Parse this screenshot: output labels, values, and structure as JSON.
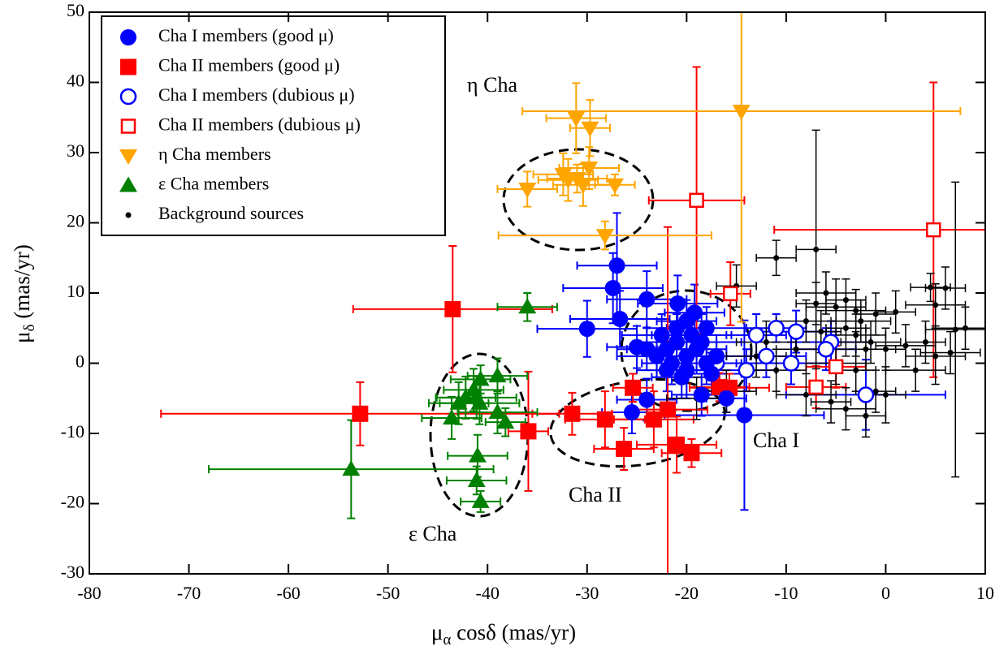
{
  "chart_data": {
    "type": "scatter",
    "xlabel": [
      "μ",
      "α",
      " cosδ (mas/yr)"
    ],
    "ylabel": [
      "μ",
      "δ",
      " (mas/yr)"
    ],
    "xlim": [
      -80,
      10
    ],
    "ylim": [
      -30,
      50
    ],
    "xticks": [
      -80,
      -70,
      -60,
      -50,
      -40,
      -30,
      -20,
      -10,
      0,
      10
    ],
    "yticks": [
      -30,
      -20,
      -10,
      0,
      10,
      20,
      30,
      40,
      50
    ],
    "legend": "upper left",
    "annotations": [
      "η Cha",
      "ε Cha",
      "Cha I",
      "Cha II"
    ],
    "series": [
      {
        "name": "Cha I members (good μ)",
        "color": "#0000ff",
        "marker": "circle",
        "x": [
          -27,
          -27.4,
          -24,
          -26.7,
          -30,
          -20.9,
          -19.2,
          -21,
          -20,
          -19.5,
          -22,
          -18,
          -20,
          -21,
          -19,
          -23,
          -18.5,
          -20.5,
          -22.5,
          -17,
          -24,
          -25,
          -17.5,
          -16,
          -24,
          -25.5,
          -14.2,
          -18.5,
          -21.5,
          -20,
          -18,
          -22
        ],
        "values": [
          13.9,
          10.7,
          9.1,
          6.3,
          4.9,
          8.5,
          7.2,
          3,
          1,
          4,
          2,
          0,
          -1,
          5,
          2,
          1,
          3,
          -2,
          4,
          1,
          2,
          2.3,
          -1.5,
          -5,
          -5.2,
          -7,
          -7.4,
          -4.5,
          0,
          6,
          5,
          -1
        ],
        "xerr": [
          4,
          5,
          4,
          5,
          5,
          4,
          3,
          4,
          3,
          4,
          4,
          3,
          3,
          3,
          3,
          4,
          4,
          3,
          4,
          4,
          3,
          3,
          3,
          2,
          3,
          3,
          8,
          3,
          3,
          3,
          4,
          3
        ],
        "yerr": [
          7.5,
          5,
          4,
          4,
          4,
          4,
          4,
          4,
          3,
          3,
          3,
          3,
          4,
          3,
          3,
          3,
          4,
          3,
          3,
          3,
          3,
          3,
          3,
          2,
          3,
          3,
          13.5,
          3,
          3,
          3,
          3,
          3
        ]
      },
      {
        "name": "Cha II members (good μ)",
        "color": "#ff0000",
        "marker": "square",
        "x": [
          -43.5,
          -52.8,
          -35.9,
          -31.5,
          -28.2,
          -26.3,
          -23.3,
          -21.9,
          -21,
          -19.5,
          -25.4,
          -16.7,
          -15.7
        ],
        "values": [
          7.7,
          -7.2,
          -9.7,
          -7.2,
          -8,
          -12.2,
          -8,
          -6.6,
          -11.6,
          -12.8,
          -3.5,
          -3.4,
          -3.5
        ],
        "xerr": [
          10,
          20,
          2,
          4,
          4,
          3,
          4,
          4,
          4,
          3,
          2,
          3,
          4
        ],
        "yerr": [
          9,
          4.5,
          8.5,
          3,
          4,
          3,
          4,
          26,
          4,
          2,
          2,
          2,
          2
        ]
      },
      {
        "name": "Cha I members (dubious  μ)",
        "color": "#0000ff",
        "marker": "circle-open",
        "x": [
          -13,
          -11,
          -9,
          -9.5,
          -5.5,
          -6,
          -2,
          -17,
          -12,
          -14
        ],
        "values": [
          4,
          5,
          4.5,
          0,
          3,
          2,
          -4.5,
          0,
          1,
          -1
        ],
        "xerr": [
          3,
          3,
          4,
          5,
          4,
          3,
          8,
          3,
          4,
          3
        ],
        "yerr": [
          3,
          2,
          3,
          3,
          3,
          3,
          5,
          3,
          3,
          3
        ]
      },
      {
        "name": "Cha II members (dubious μ)",
        "color": "#ff0000",
        "marker": "square-open",
        "x": [
          -19,
          4.8,
          -15.6,
          -7,
          -5
        ],
        "values": [
          23.2,
          19,
          9.9,
          -3.4,
          -0.5
        ],
        "xerr": [
          4.8,
          16,
          2,
          3,
          3
        ],
        "yerr": [
          19,
          21,
          4.5,
          3,
          3
        ]
      },
      {
        "name": "η Cha members",
        "color": "#ffa500",
        "marker": "triangle-down",
        "x": [
          -31.1,
          -29.7,
          -36,
          -32.4,
          -31.9,
          -31,
          -30.4,
          -29.8,
          -27.2,
          -28.2,
          -14.5
        ],
        "values": [
          34.9,
          33.5,
          24.8,
          26.9,
          26.1,
          26.3,
          25.4,
          27.8,
          25.4,
          18.2,
          35.9
        ],
        "xerr": [
          3,
          2,
          3,
          3,
          3,
          3,
          3,
          3,
          2,
          10.7,
          22
        ],
        "yerr": [
          5,
          4,
          2.5,
          3,
          3,
          2,
          3,
          3,
          1.5,
          2,
          30
        ]
      },
      {
        "name": "ε Cha members",
        "color": "#008000",
        "marker": "triangle-up",
        "x": [
          -53.7,
          -36,
          -39,
          -40.7,
          -41.4,
          -42.2,
          -42.9,
          -43.6,
          -41.1,
          -40.8,
          -39,
          -38.2,
          -41,
          -41.1,
          -40.7
        ],
        "values": [
          -15.1,
          8,
          -1.8,
          -2.3,
          -3.8,
          -4.9,
          -5.7,
          -7.8,
          -4.9,
          -5.7,
          -7,
          -8.4,
          -13.2,
          -16.7,
          -19.7
        ],
        "xerr": [
          14.3,
          3,
          3,
          3,
          3,
          3,
          3,
          3,
          4,
          4,
          4,
          2,
          3,
          3,
          2
        ],
        "yerr": [
          7,
          2,
          2.5,
          2,
          3,
          3,
          3,
          3,
          3,
          3,
          3,
          2,
          3,
          2,
          1.5
        ]
      },
      {
        "name": "Background sources",
        "color": "#000000",
        "marker": "dot",
        "x": [
          -11,
          -7,
          -6,
          -7,
          -4,
          -5,
          -3,
          -1,
          -2.5,
          -4,
          -8,
          -6.5,
          -3,
          -1.5,
          0,
          2,
          4,
          5,
          6.5,
          7,
          4.5,
          6,
          5,
          1,
          -2,
          -9,
          -5,
          -3,
          -1,
          0,
          -5.5,
          -8,
          -11,
          -13,
          -12,
          -15,
          -16,
          -2,
          -4,
          3,
          -19,
          8
        ],
        "values": [
          15,
          16.2,
          10,
          8.5,
          9,
          8,
          7.5,
          7,
          6,
          5,
          6,
          4.5,
          4,
          3,
          2,
          2.5,
          3,
          1,
          1.5,
          4.8,
          10.8,
          10.7,
          8.3,
          7.3,
          2,
          2,
          0,
          -1,
          -4,
          -4.5,
          -5.5,
          -4.5,
          -1,
          1,
          3,
          11,
          -4,
          -7.5,
          -6.5,
          -1,
          -5,
          5
        ],
        "xerr": [
          2,
          2,
          3,
          2,
          2,
          3,
          3,
          2,
          3,
          2,
          3,
          2,
          3,
          3,
          2,
          3,
          2,
          3,
          3,
          3,
          2,
          2,
          3,
          2,
          3,
          2,
          3,
          2,
          2,
          2,
          2,
          3,
          3,
          3,
          3,
          2,
          3,
          2,
          3,
          3,
          3,
          3
        ],
        "yerr": [
          2.5,
          17,
          3,
          3,
          3,
          4,
          3,
          3,
          3,
          4,
          3,
          3,
          3,
          3,
          3,
          3,
          3,
          4,
          3,
          21,
          2,
          3,
          3,
          3,
          3,
          3,
          3,
          3,
          3,
          4,
          3,
          3,
          3,
          3,
          3,
          3,
          3,
          3,
          3,
          3,
          3,
          3
        ]
      }
    ]
  }
}
